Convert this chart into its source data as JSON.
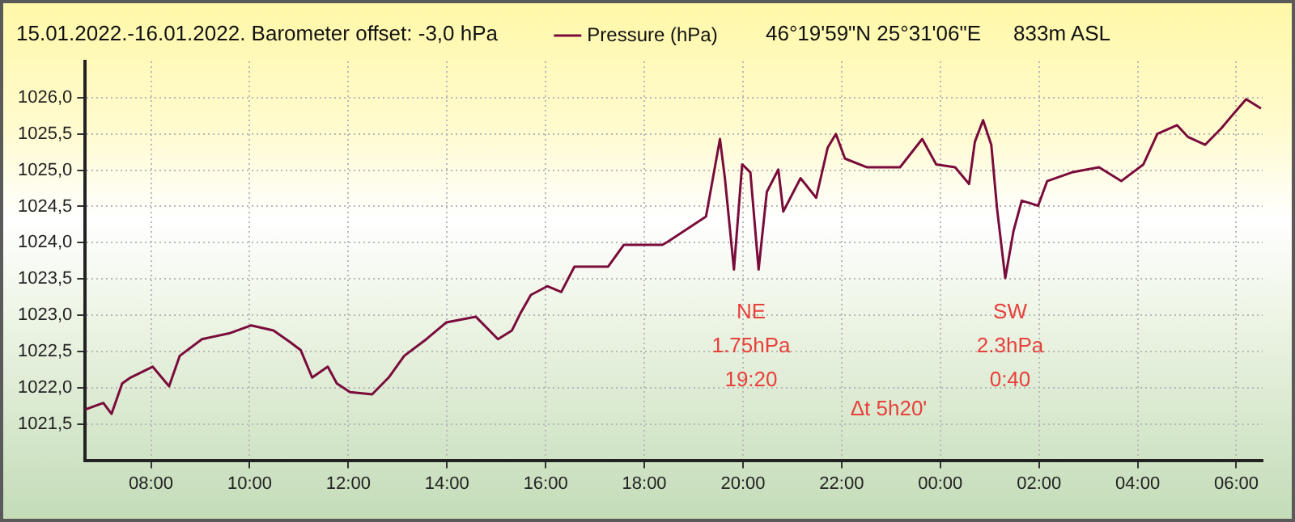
{
  "chart_data": {
    "type": "line",
    "title": "15.01.2022.-16.01.2022. Barometer offset: -3,0 hPa",
    "x": [
      "2022-01-15T06:40",
      "2022-01-15T07:02",
      "2022-01-15T07:12",
      "2022-01-15T07:25",
      "2022-01-15T07:35",
      "2022-01-15T08:02",
      "2022-01-15T08:22",
      "2022-01-15T08:35",
      "2022-01-15T09:02",
      "2022-01-15T09:35",
      "2022-01-15T10:02",
      "2022-01-15T10:29",
      "2022-01-15T10:49",
      "2022-01-15T11:02",
      "2022-01-15T11:16",
      "2022-01-15T11:35",
      "2022-01-15T11:46",
      "2022-01-15T12:02",
      "2022-01-15T12:29",
      "2022-01-15T12:49",
      "2022-01-15T13:08",
      "2022-01-15T13:35",
      "2022-01-15T13:59",
      "2022-01-15T14:35",
      "2022-01-15T15:02",
      "2022-01-15T15:19",
      "2022-01-15T15:29",
      "2022-01-15T15:42",
      "2022-01-15T16:02",
      "2022-01-15T16:19",
      "2022-01-15T16:35",
      "2022-01-15T17:16",
      "2022-01-15T17:35",
      "2022-01-15T18:22",
      "2022-01-15T18:28",
      "2022-01-15T19:15",
      "2022-01-15T19:32",
      "2022-01-15T19:38",
      "2022-01-15T19:49",
      "2022-01-15T19:59",
      "2022-01-15T20:09",
      "2022-01-15T20:19",
      "2022-01-15T20:29",
      "2022-01-15T20:43",
      "2022-01-15T20:49",
      "2022-01-15T21:10",
      "2022-01-15T21:29",
      "2022-01-15T21:43",
      "2022-01-15T21:53",
      "2022-01-15T22:04",
      "2022-01-15T22:31",
      "2022-01-15T23:11",
      "2022-01-15T23:38",
      "2022-01-15T23:55",
      "2022-01-16T00:18",
      "2022-01-16T00:35",
      "2022-01-16T00:42",
      "2022-01-16T00:52",
      "2022-01-16T01:02",
      "2022-01-16T01:09",
      "2022-01-16T01:19",
      "2022-01-16T01:29",
      "2022-01-16T01:39",
      "2022-01-16T01:59",
      "2022-01-16T02:10",
      "2022-01-16T02:40",
      "2022-01-16T03:13",
      "2022-01-16T03:40",
      "2022-01-16T04:07",
      "2022-01-16T04:24",
      "2022-01-16T04:48",
      "2022-01-16T05:01",
      "2022-01-16T05:22",
      "2022-01-16T05:42",
      "2022-01-16T05:59",
      "2022-01-16T06:12",
      "2022-01-16T06:30"
    ],
    "series": [
      {
        "name": "Pressure (hPa)",
        "color": "#7a0c3c",
        "values": [
          1021.7,
          1021.79,
          1021.64,
          1022.06,
          1022.14,
          1022.29,
          1022.02,
          1022.44,
          1022.67,
          1022.75,
          1022.86,
          1022.79,
          1022.63,
          1022.52,
          1022.14,
          1022.29,
          1022.06,
          1021.94,
          1021.91,
          1022.14,
          1022.44,
          1022.67,
          1022.9,
          1022.98,
          1022.67,
          1022.79,
          1023.02,
          1023.28,
          1023.4,
          1023.32,
          1023.67,
          1023.67,
          1023.97,
          1023.97,
          1024.01,
          1024.36,
          1025.43,
          1024.89,
          1023.63,
          1025.08,
          1024.97,
          1023.63,
          1024.7,
          1025.01,
          1024.43,
          1024.89,
          1024.62,
          1025.31,
          1025.5,
          1025.16,
          1025.04,
          1025.04,
          1025.43,
          1025.08,
          1025.04,
          1024.81,
          1025.39,
          1025.69,
          1025.35,
          1024.47,
          1023.51,
          1024.16,
          1024.58,
          1024.51,
          1024.85,
          1024.97,
          1025.04,
          1024.85,
          1025.08,
          1025.5,
          1025.62,
          1025.46,
          1025.35,
          1025.58,
          1025.81,
          1025.98,
          1025.85
        ]
      }
    ],
    "xlim": [
      "2022-01-15T06:40",
      "2022-01-16T06:32"
    ],
    "xticks": [
      {
        "value": "2022-01-15T08:00",
        "label": "08:00"
      },
      {
        "value": "2022-01-15T10:00",
        "label": "10:00"
      },
      {
        "value": "2022-01-15T12:00",
        "label": "12:00"
      },
      {
        "value": "2022-01-15T14:00",
        "label": "14:00"
      },
      {
        "value": "2022-01-15T16:00",
        "label": "16:00"
      },
      {
        "value": "2022-01-15T18:00",
        "label": "18:00"
      },
      {
        "value": "2022-01-15T20:00",
        "label": "20:00"
      },
      {
        "value": "2022-01-15T22:00",
        "label": "22:00"
      },
      {
        "value": "2022-01-16T00:00",
        "label": "00:00"
      },
      {
        "value": "2022-01-16T02:00",
        "label": "02:00"
      },
      {
        "value": "2022-01-16T04:00",
        "label": "04:00"
      },
      {
        "value": "2022-01-16T06:00",
        "label": "06:00"
      }
    ],
    "ylim": [
      1021,
      1026.5
    ],
    "yticks": [
      {
        "value": 1021.5,
        "label": "1021,5"
      },
      {
        "value": 1022,
        "label": "1022,0"
      },
      {
        "value": 1022.5,
        "label": "1022,5"
      },
      {
        "value": 1023,
        "label": "1023,0"
      },
      {
        "value": 1023.5,
        "label": "1023,5"
      },
      {
        "value": 1024,
        "label": "1024,0"
      },
      {
        "value": 1024.5,
        "label": "1024,5"
      },
      {
        "value": 1025,
        "label": "1025,0"
      },
      {
        "value": 1025.5,
        "label": "1025,5"
      },
      {
        "value": 1026,
        "label": "1026,0"
      }
    ],
    "annotations": [
      "46°19'59\"N 25°31'06\"E",
      "833m ASL",
      "NE\n1.75hPa\n19:20",
      "SW\n2.3hPa\n0:40",
      "Δt 5h20'"
    ],
    "grid": true,
    "legend": "top",
    "marker": "none",
    "line_style": "solid"
  }
}
